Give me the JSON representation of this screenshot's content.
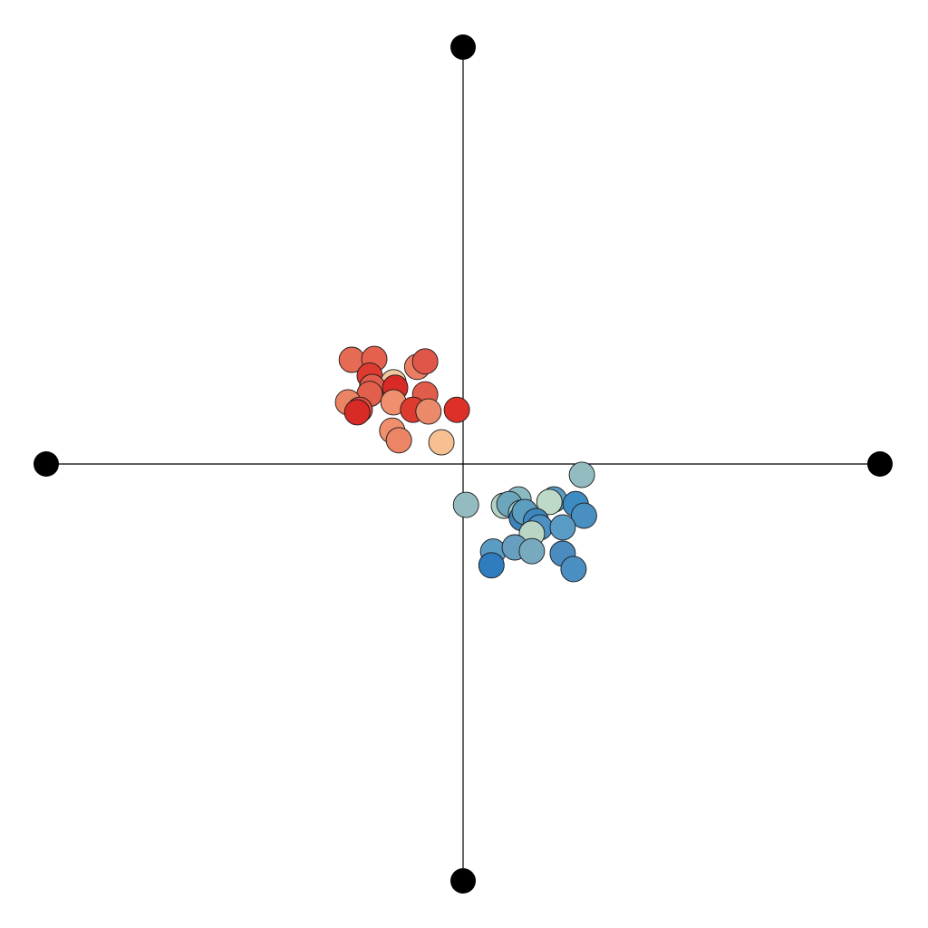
{
  "chart_data": {
    "type": "scatter",
    "title": "",
    "xlabel": "",
    "ylabel": "",
    "xlim": [
      -1,
      1
    ],
    "ylim": [
      -1,
      1
    ],
    "grid": false,
    "legend": "none",
    "anchors": [
      {
        "x": 0,
        "y": 1
      },
      {
        "x": 1,
        "y": 0
      },
      {
        "x": 0,
        "y": -1
      },
      {
        "x": -1,
        "y": 0
      }
    ],
    "points": [
      {
        "x": -0.267,
        "y": 0.25,
        "color": "#e56b55"
      },
      {
        "x": -0.213,
        "y": 0.252,
        "color": "#e5604d"
      },
      {
        "x": -0.11,
        "y": 0.233,
        "color": "#eb7d63"
      },
      {
        "x": -0.091,
        "y": 0.246,
        "color": "#e0574a"
      },
      {
        "x": -0.224,
        "y": 0.212,
        "color": "#dd3a30"
      },
      {
        "x": -0.167,
        "y": 0.196,
        "color": "#f0c9a0"
      },
      {
        "x": -0.218,
        "y": 0.185,
        "color": "#e25c4b"
      },
      {
        "x": -0.163,
        "y": 0.183,
        "color": "#d82a27"
      },
      {
        "x": -0.224,
        "y": 0.168,
        "color": "#e25f4c"
      },
      {
        "x": -0.276,
        "y": 0.148,
        "color": "#eb8465"
      },
      {
        "x": -0.167,
        "y": 0.148,
        "color": "#ef8f6e"
      },
      {
        "x": -0.091,
        "y": 0.167,
        "color": "#e25c4b"
      },
      {
        "x": -0.248,
        "y": 0.13,
        "color": "#df4a3e"
      },
      {
        "x": -0.254,
        "y": 0.124,
        "color": "#d82a27"
      },
      {
        "x": -0.12,
        "y": 0.13,
        "color": "#dd3a30"
      },
      {
        "x": -0.083,
        "y": 0.126,
        "color": "#eb8a6a"
      },
      {
        "x": -0.015,
        "y": 0.13,
        "color": "#dd3029"
      },
      {
        "x": -0.17,
        "y": 0.08,
        "color": "#ef8f6e"
      },
      {
        "x": -0.154,
        "y": 0.057,
        "color": "#eb8565"
      },
      {
        "x": -0.052,
        "y": 0.052,
        "color": "#f6c092"
      },
      {
        "x": 0.285,
        "y": -0.026,
        "color": "#92bcc0"
      },
      {
        "x": 0.007,
        "y": -0.098,
        "color": "#94bcc0"
      },
      {
        "x": 0.098,
        "y": -0.1,
        "color": "#b2d3c4"
      },
      {
        "x": 0.133,
        "y": -0.085,
        "color": "#8cbac2"
      },
      {
        "x": 0.111,
        "y": -0.096,
        "color": "#6ca6bd"
      },
      {
        "x": 0.218,
        "y": -0.085,
        "color": "#5b9cc4"
      },
      {
        "x": 0.207,
        "y": -0.091,
        "color": "#bdd9c7"
      },
      {
        "x": 0.27,
        "y": -0.096,
        "color": "#3c8bc1"
      },
      {
        "x": 0.29,
        "y": -0.124,
        "color": "#4a8fc2"
      },
      {
        "x": 0.139,
        "y": -0.117,
        "color": "#9cc7c4"
      },
      {
        "x": 0.141,
        "y": -0.13,
        "color": "#3c82b8"
      },
      {
        "x": 0.148,
        "y": -0.115,
        "color": "#5b9ec0"
      },
      {
        "x": 0.175,
        "y": -0.137,
        "color": "#3d86bf"
      },
      {
        "x": 0.184,
        "y": -0.152,
        "color": "#4d91c3"
      },
      {
        "x": 0.239,
        "y": -0.152,
        "color": "#5a9bc6"
      },
      {
        "x": 0.165,
        "y": -0.167,
        "color": "#b9d6c5"
      },
      {
        "x": 0.072,
        "y": -0.21,
        "color": "#5b9cc4"
      },
      {
        "x": 0.124,
        "y": -0.2,
        "color": "#689fc0"
      },
      {
        "x": 0.165,
        "y": -0.209,
        "color": "#78aabf"
      },
      {
        "x": 0.239,
        "y": -0.215,
        "color": "#4a8cbf"
      },
      {
        "x": 0.068,
        "y": -0.243,
        "color": "#2f7cbe"
      },
      {
        "x": 0.265,
        "y": -0.252,
        "color": "#4a8fc2"
      }
    ]
  }
}
